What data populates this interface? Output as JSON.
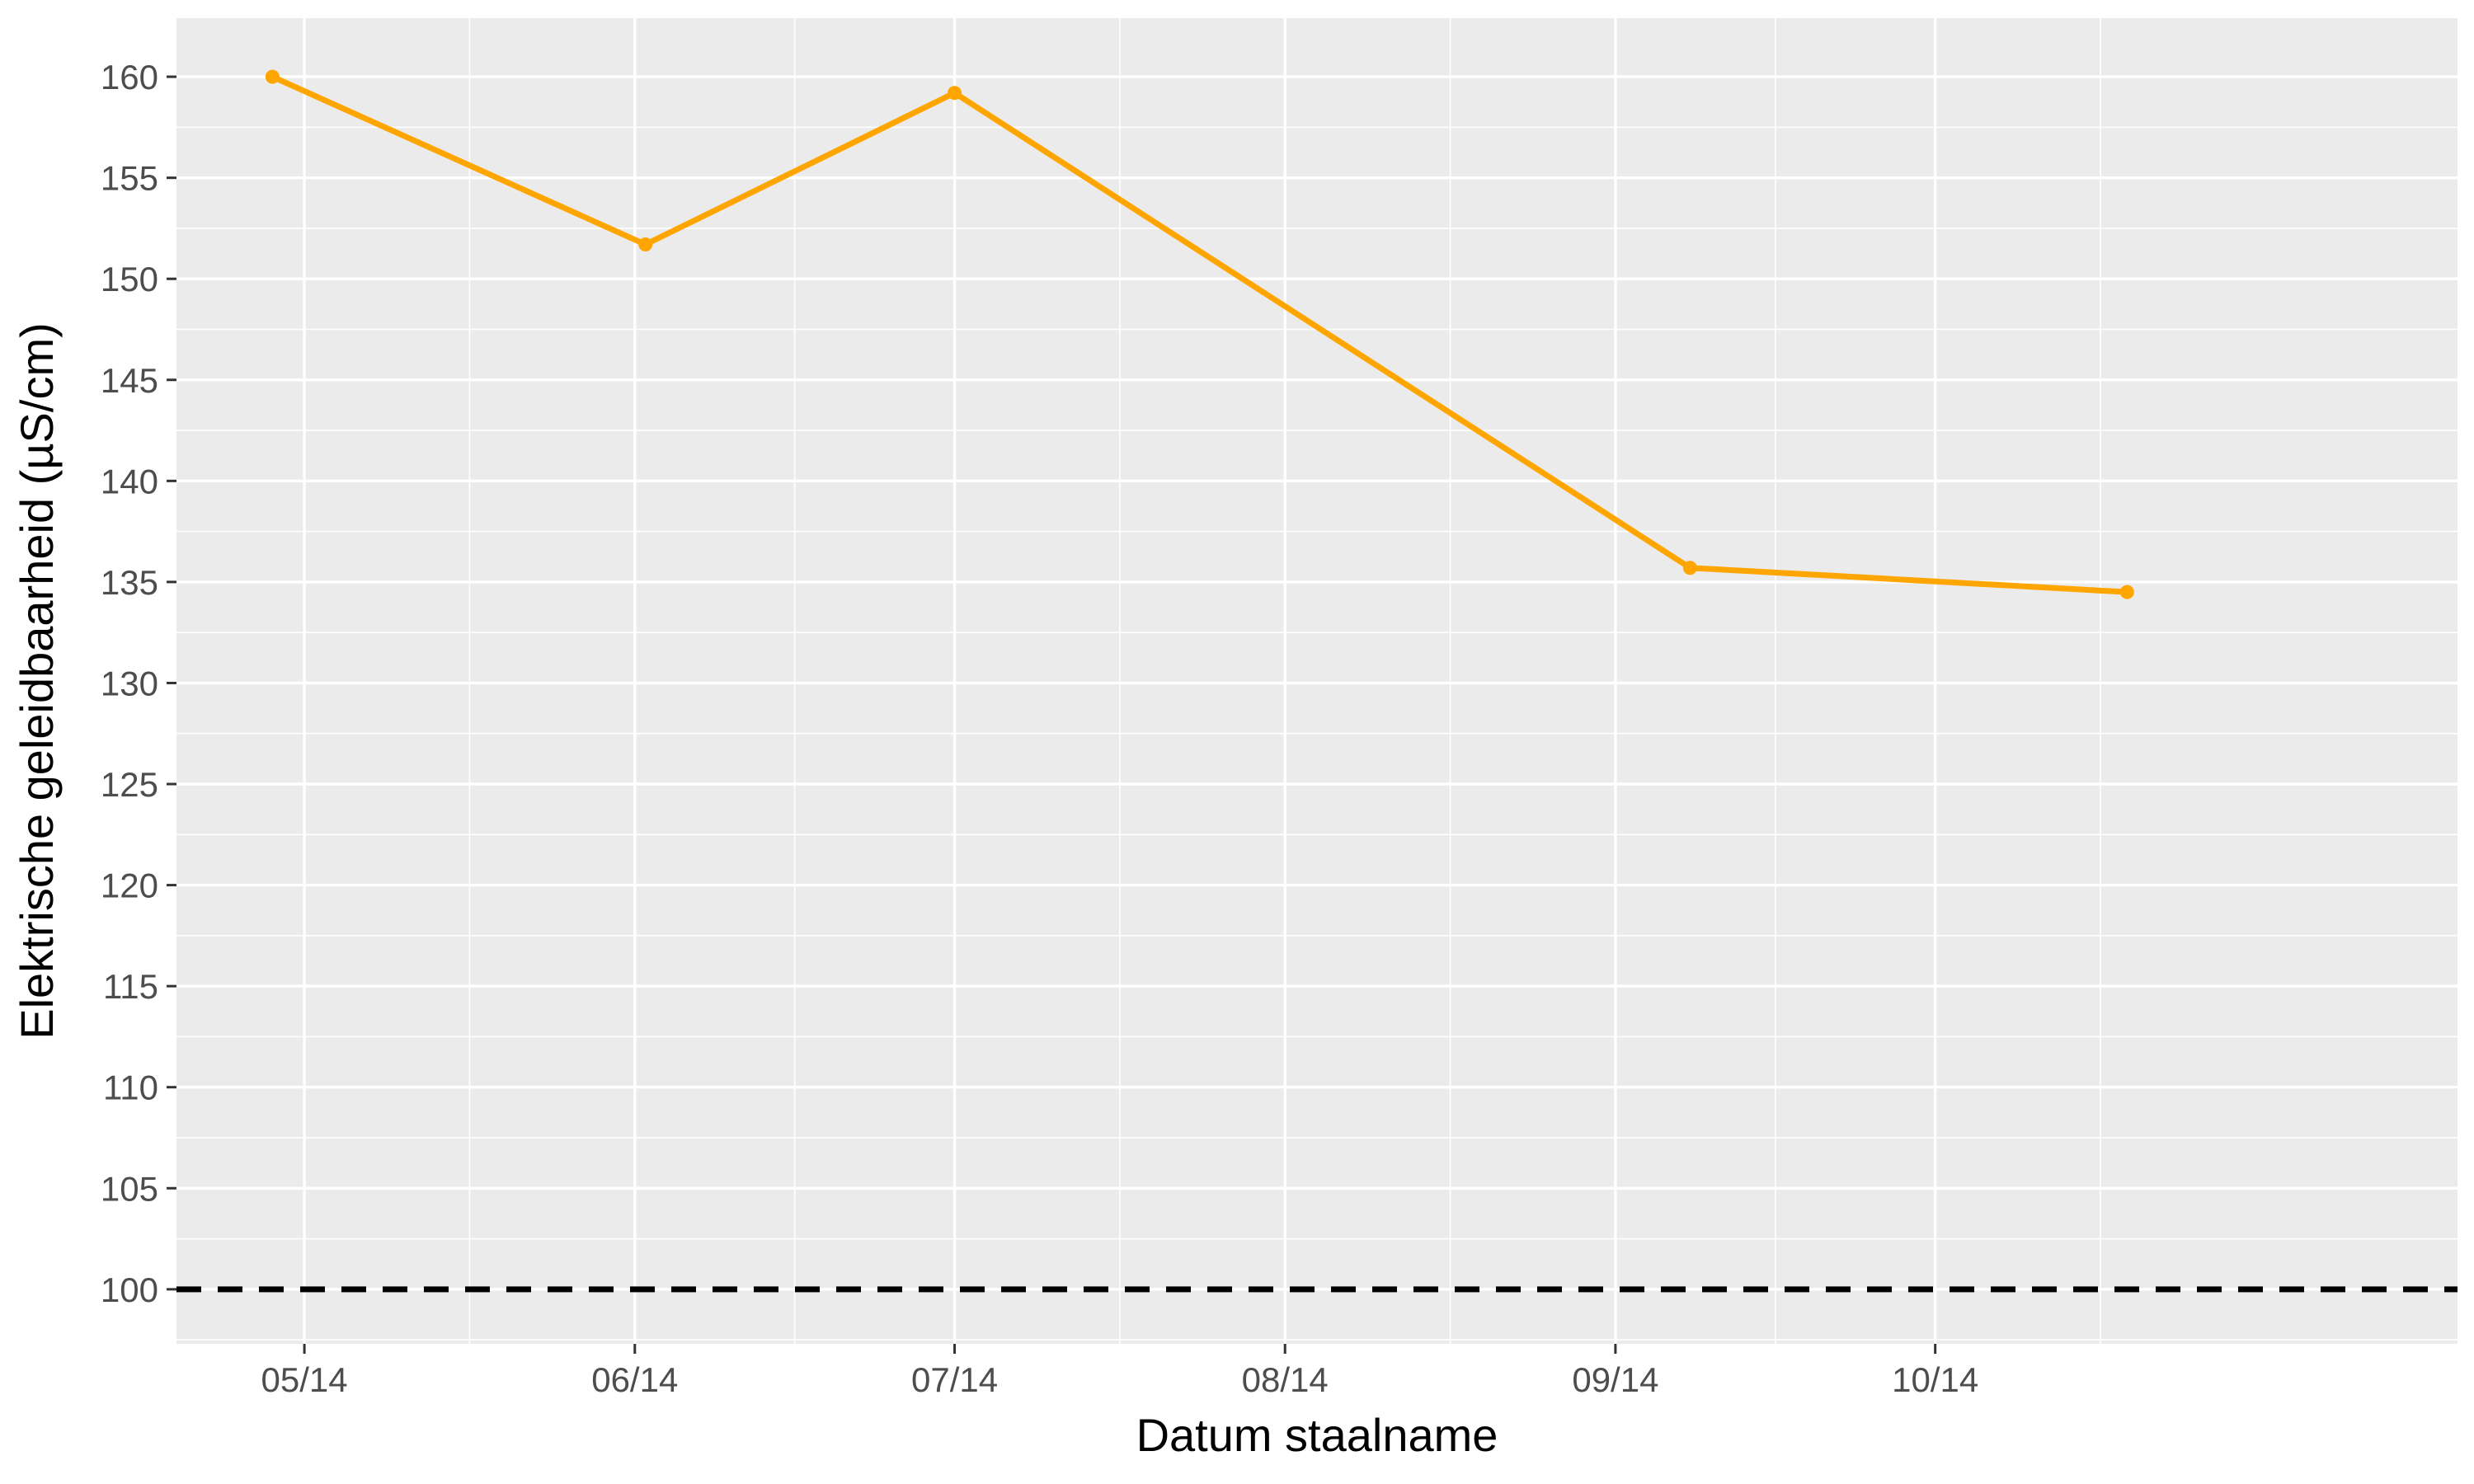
{
  "chart_data": {
    "type": "line",
    "title": "",
    "xlabel": "Datum staalname",
    "ylabel": "Elektrische geleidbaarheid (µS/cm)",
    "x_tick_labels": [
      "05/14",
      "06/14",
      "07/14",
      "08/14",
      "09/14",
      "10/14"
    ],
    "x_tick_dates": [
      "2014-05-01",
      "2014-06-01",
      "2014-07-01",
      "2014-08-01",
      "2014-09-01",
      "2014-10-01"
    ],
    "xlim": [
      "2014-04-19",
      "2014-11-19"
    ],
    "y_ticks": [
      100,
      105,
      110,
      115,
      120,
      125,
      130,
      135,
      140,
      145,
      150,
      155,
      160
    ],
    "ylim": [
      97.3,
      162.9
    ],
    "grid": true,
    "series": [
      {
        "color": "#FFA500",
        "points": [
          {
            "date": "2014-04-28",
            "value": 160.0
          },
          {
            "date": "2014-06-02",
            "value": 151.7
          },
          {
            "date": "2014-07-01",
            "value": 159.2
          },
          {
            "date": "2014-09-08",
            "value": 135.7
          },
          {
            "date": "2014-10-19",
            "value": 134.5
          }
        ]
      }
    ],
    "reference_line": {
      "value": 100,
      "style": "dashed",
      "color": "#000000"
    },
    "colors": {
      "panel": "#EBEBEB",
      "grid": "#FFFFFF",
      "tick_text": "#4D4D4D",
      "tick": "#333333"
    }
  }
}
